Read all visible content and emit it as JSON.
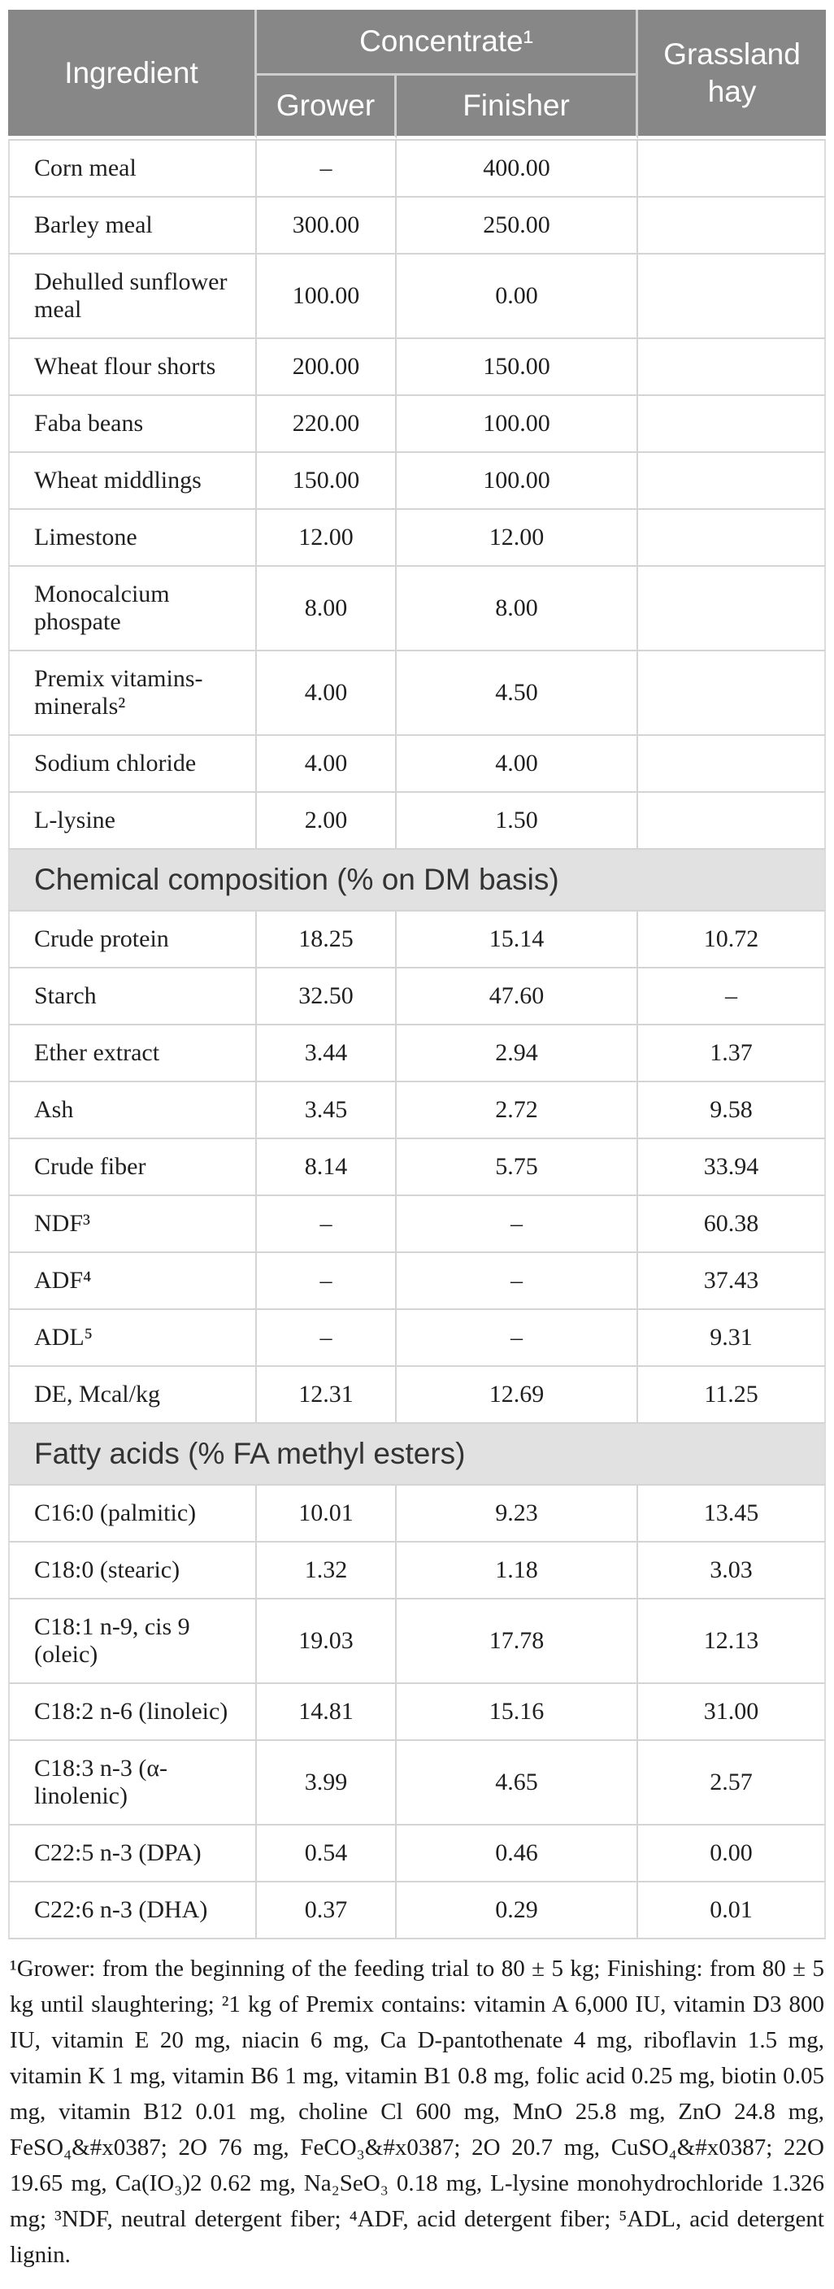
{
  "table": {
    "header": {
      "ingredient": "Ingredient",
      "concentrate": "Concentrate¹",
      "grower": "Grower",
      "finisher": "Finisher",
      "grassland": "Grassland hay"
    },
    "ingredient_rows": [
      {
        "label": "Corn meal",
        "grower": "–",
        "finisher": "400.00",
        "hay": ""
      },
      {
        "label": "Barley meal",
        "grower": "300.00",
        "finisher": "250.00",
        "hay": ""
      },
      {
        "label": "Dehulled sunflower meal",
        "grower": "100.00",
        "finisher": "0.00",
        "hay": ""
      },
      {
        "label": "Wheat flour shorts",
        "grower": "200.00",
        "finisher": "150.00",
        "hay": ""
      },
      {
        "label": "Faba beans",
        "grower": "220.00",
        "finisher": "100.00",
        "hay": ""
      },
      {
        "label": "Wheat middlings",
        "grower": "150.00",
        "finisher": "100.00",
        "hay": ""
      },
      {
        "label": "Limestone",
        "grower": "12.00",
        "finisher": "12.00",
        "hay": ""
      },
      {
        "label": "Monocalcium phospate",
        "grower": "8.00",
        "finisher": "8.00",
        "hay": ""
      },
      {
        "label": "Premix vitamins-minerals²",
        "grower": "4.00",
        "finisher": "4.50",
        "hay": ""
      },
      {
        "label": "Sodium chloride",
        "grower": "4.00",
        "finisher": "4.00",
        "hay": ""
      },
      {
        "label": "L-lysine",
        "grower": "2.00",
        "finisher": "1.50",
        "hay": ""
      }
    ],
    "section_chemical": "Chemical composition (% on DM basis)",
    "chemical_rows": [
      {
        "label": "Crude protein",
        "grower": "18.25",
        "finisher": "15.14",
        "hay": "10.72"
      },
      {
        "label": "Starch",
        "grower": "32.50",
        "finisher": "47.60",
        "hay": "–"
      },
      {
        "label": "Ether extract",
        "grower": "3.44",
        "finisher": "2.94",
        "hay": "1.37"
      },
      {
        "label": "Ash",
        "grower": "3.45",
        "finisher": "2.72",
        "hay": "9.58"
      },
      {
        "label": "Crude fiber",
        "grower": "8.14",
        "finisher": "5.75",
        "hay": "33.94"
      },
      {
        "label": "NDF³",
        "grower": "–",
        "finisher": "–",
        "hay": "60.38"
      },
      {
        "label": "ADF⁴",
        "grower": "–",
        "finisher": "–",
        "hay": "37.43"
      },
      {
        "label": "ADL⁵",
        "grower": "–",
        "finisher": "–",
        "hay": "9.31"
      },
      {
        "label": "DE, Mcal/kg",
        "grower": "12.31",
        "finisher": "12.69",
        "hay": "11.25"
      }
    ],
    "section_fatty": "Fatty acids (% FA methyl esters)",
    "fatty_rows": [
      {
        "label": "C16:0 (palmitic)",
        "grower": "10.01",
        "finisher": "9.23",
        "hay": "13.45"
      },
      {
        "label": "C18:0 (stearic)",
        "grower": "1.32",
        "finisher": "1.18",
        "hay": "3.03"
      },
      {
        "label": "C18:1 n-9, cis 9 (oleic)",
        "grower": "19.03",
        "finisher": "17.78",
        "hay": "12.13"
      },
      {
        "label": "C18:2 n-6 (linoleic)",
        "grower": "14.81",
        "finisher": "15.16",
        "hay": "31.00"
      },
      {
        "label": "C18:3 n-3 (α-linolenic)",
        "grower": "3.99",
        "finisher": "4.65",
        "hay": "2.57"
      },
      {
        "label": "C22:5 n-3 (DPA)",
        "grower": "0.54",
        "finisher": "0.46",
        "hay": "0.00"
      },
      {
        "label": "C22:6 n-3 (DHA)",
        "grower": "0.37",
        "finisher": "0.29",
        "hay": "0.01"
      }
    ]
  },
  "footnote": "¹Grower: from the beginning of the feeding trial to 80 ± 5 kg; Finishing: from 80 ± 5 kg until slaughtering; ²1 kg of Premix contains: vitamin A 6,000 IU, vitamin D3 800 IU, vitamin E 20 mg, niacin 6 mg, Ca D-pantothenate 4 mg, riboflavin 1.5 mg, vitamin K 1 mg, vitamin B6 1 mg, vitamin B1 0.8 mg, folic acid 0.25 mg, biotin 0.05 mg, vitamin B12 0.01 mg, choline Cl 600 mg, MnO 25.8 mg, ZnO 24.8 mg, FeSO₄&#x0387; 2O 76 mg, FeCO₃&#x0387; 2O 20.7 mg, CuSO₄&#x0387; 22O 19.65 mg, Ca(IO₃)2 0.62 mg, Na₂SeO₃ 0.18 mg, L-lysine monohydrochloride 1.326 mg; ³NDF, neutral detergent fiber; ⁴ADF, acid detergent fiber; ⁵ADL, acid detergent lignin.",
  "colors": {
    "header_bg": "#878787",
    "header_text": "#ffffff",
    "section_bg": "#e1e1e1",
    "section_text": "#333333",
    "grid_line": "#d4d4d4",
    "body_text": "#1f1f1f"
  }
}
